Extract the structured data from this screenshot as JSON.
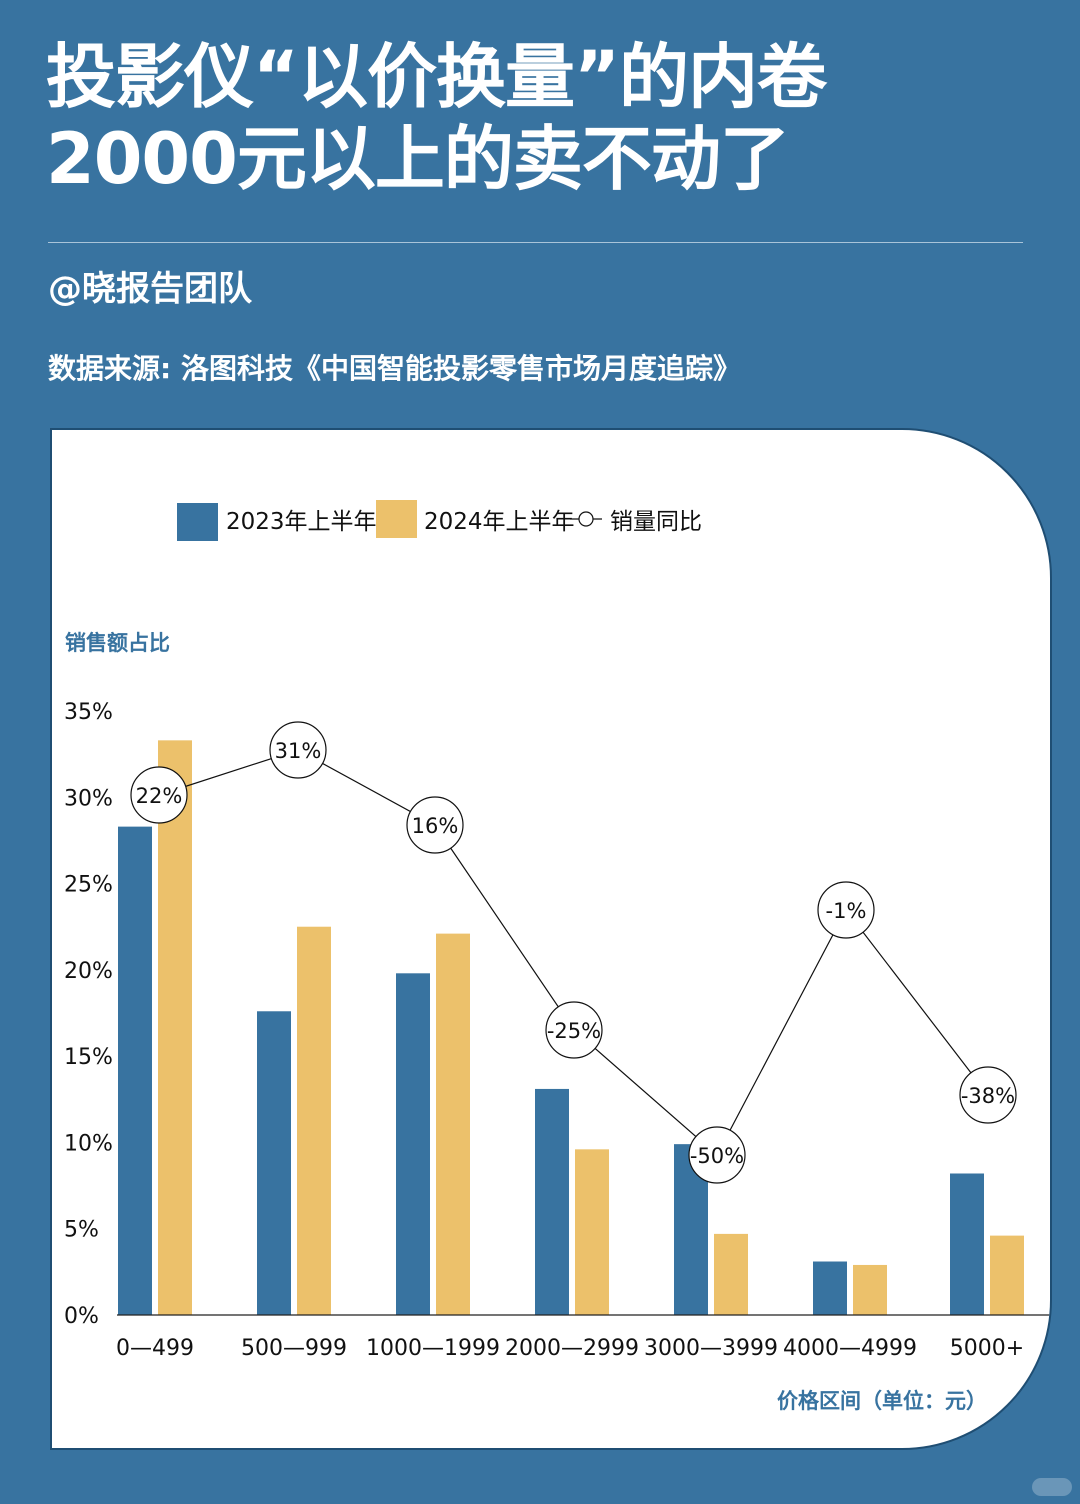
{
  "header": {
    "title_line1": "投影仪“以价换量”的内卷",
    "title_line2": "2000元以上的卖不动了",
    "author": "@晓报告团队",
    "source": "数据来源: 洛图科技《中国智能投影零售市场月度追踪》"
  },
  "colors": {
    "background": "#3873a0",
    "bar_2023": "#3873a0",
    "bar_2024": "#ecc16b",
    "axis_label": "#3873a0",
    "text": "#111111"
  },
  "chart_data": {
    "type": "bar",
    "title": "",
    "ylabel": "销售额占比",
    "xlabel": "价格区间（单位：元）",
    "ylim": [
      0,
      35
    ],
    "yticks": [
      0,
      5,
      10,
      15,
      20,
      25,
      30,
      35
    ],
    "ytick_labels": [
      "0%",
      "5%",
      "10%",
      "15%",
      "20%",
      "25%",
      "30%",
      "35%"
    ],
    "categories": [
      "0—499",
      "500—999",
      "1000—1999",
      "2000—2999",
      "3000—3999",
      "4000—4999",
      "5000+"
    ],
    "series": [
      {
        "name": "2023年上半年",
        "values": [
          28.3,
          17.6,
          19.8,
          13.1,
          9.9,
          3.1,
          8.2
        ]
      },
      {
        "name": "2024年上半年",
        "values": [
          33.3,
          22.5,
          22.1,
          9.6,
          4.7,
          2.9,
          4.6
        ]
      }
    ],
    "line_series": {
      "name": "销量同比",
      "values": [
        22,
        31,
        16,
        -25,
        -50,
        -1,
        -38
      ],
      "labels": [
        "22%",
        "31%",
        "16%",
        "-25%",
        "-50%",
        "-1%",
        "-38%"
      ]
    },
    "legend_position": "top",
    "grid": false
  }
}
